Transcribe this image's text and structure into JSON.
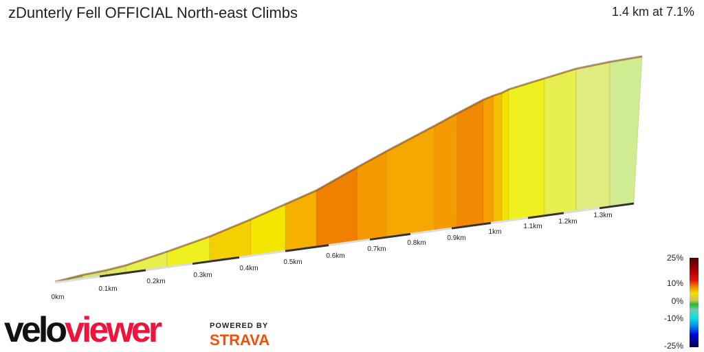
{
  "header": {
    "title": "zDunterly Fell OFFICIAL North-east Climbs",
    "summary": "1.4 km at 7.1%"
  },
  "chart_data": {
    "type": "area",
    "title": "zDunterly Fell OFFICIAL North-east Climbs",
    "x_tick_labels": [
      "0km",
      "0.1km",
      "0.2km",
      "0.3km",
      "0.4km",
      "0.5km",
      "0.6km",
      "0.7km",
      "0.8km",
      "0.9km",
      "1km",
      "1.1km",
      "1.2km",
      "1.3km"
    ],
    "segment_colors": [
      "#a8c860",
      "#d4e070",
      "#e0e860",
      "#e6ee50",
      "#f0f020",
      "#f5d000",
      "#f5e600",
      "#f5b000",
      "#f08000",
      "#f59a00",
      "#f5a800",
      "#f59a00",
      "#f08800",
      "#f5a000",
      "#f5c000",
      "#f5e000",
      "#f0f020",
      "#e6ee50",
      "#e0ec80",
      "#d0ec90"
    ],
    "legend": {
      "labels": [
        "25%",
        "10%",
        "0%",
        "-10%",
        "-25%"
      ]
    }
  },
  "branding": {
    "logo_a": "velo",
    "logo_b": "viewer",
    "powered_by": "POWERED BY",
    "strava": "STRAVA"
  }
}
